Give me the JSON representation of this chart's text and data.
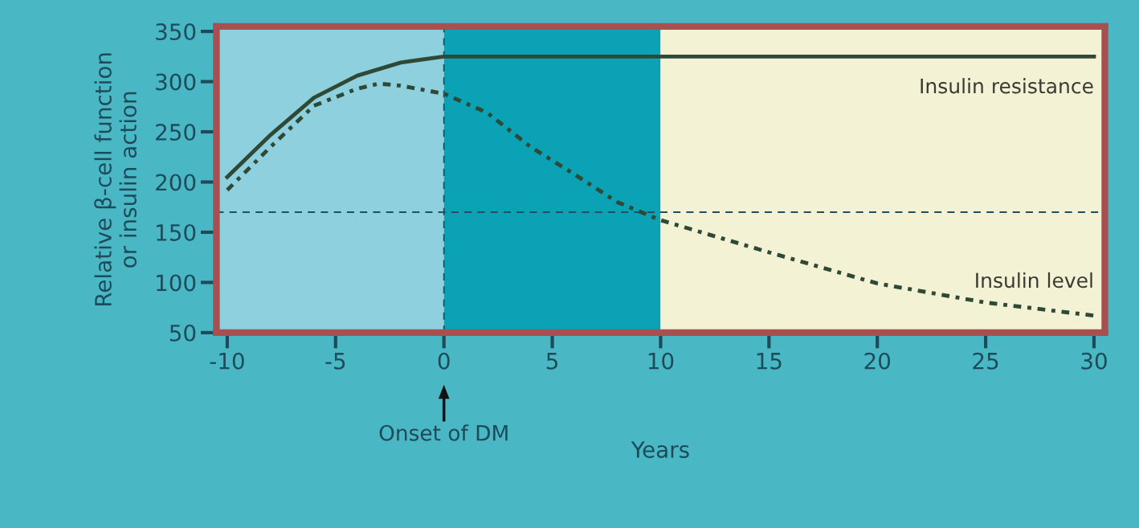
{
  "chart_data": {
    "type": "line",
    "xlabel": "Years",
    "ylabel": "Relative β-cell function\nor insulin action",
    "xlim": [
      -10.5,
      30.5
    ],
    "xticks": [
      -10,
      -5,
      0,
      5,
      10,
      15,
      20,
      25,
      30
    ],
    "ylim": [
      50,
      355
    ],
    "yticks": [
      50,
      100,
      150,
      200,
      250,
      300,
      350
    ],
    "grid": false,
    "legend": false,
    "marker": "none",
    "series": [
      {
        "name": "Insulin resistance",
        "color": "#2e4a36",
        "line_style": "solid",
        "x": [
          -10,
          -8,
          -6,
          -4,
          -2,
          0,
          5,
          10,
          15,
          20,
          25,
          30
        ],
        "values": [
          205,
          247,
          284,
          306,
          319,
          325,
          325,
          325,
          325,
          325,
          325,
          325
        ]
      },
      {
        "name": "Insulin level",
        "color": "#2e4a36",
        "line_style": "dotted",
        "x": [
          -10,
          -8,
          -6,
          -4,
          -3,
          -2,
          0,
          2,
          4,
          6,
          8,
          10,
          15,
          20,
          25,
          30
        ],
        "values": [
          192,
          235,
          276,
          293,
          298,
          296,
          288,
          269,
          235,
          208,
          180,
          162,
          130,
          99,
          80,
          67
        ]
      }
    ],
    "bands": [
      {
        "axis": "x",
        "from": -10.5,
        "to": 0,
        "color": "#8fd0de"
      },
      {
        "axis": "x",
        "from": 0,
        "to": 10,
        "color": "#0aa2b4"
      },
      {
        "axis": "x",
        "from": 10,
        "to": 30.5,
        "color": "#f4f2d5"
      }
    ],
    "ref_lines": [
      {
        "axis": "y",
        "value": 170,
        "color": "#1f5060",
        "line_style": "dashed"
      },
      {
        "axis": "x",
        "value": 0,
        "color": "#1f5060",
        "line_style": "dashed",
        "label": "Onset of DM"
      }
    ]
  }
}
